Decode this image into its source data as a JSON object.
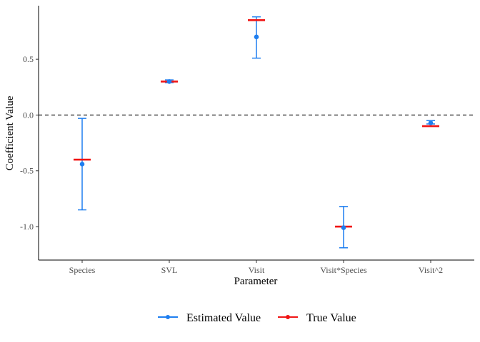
{
  "chart_data": {
    "type": "scatter",
    "xlabel": "Parameter",
    "ylabel": "Coefficient Value",
    "categories": [
      "Species",
      "SVL",
      "Visit",
      "Visit*Species",
      "Visit^2"
    ],
    "ylim": [
      -1.3,
      0.98
    ],
    "yticks": [
      -1.0,
      -0.5,
      0.0,
      0.5
    ],
    "ytick_labels": [
      "-1.0",
      "-0.5",
      "0.0",
      "0.5"
    ],
    "reference_line": {
      "y": 0,
      "style": "dashed"
    },
    "series": [
      {
        "name": "Estimated Value",
        "color": "#1E7EF0",
        "values": [
          -0.44,
          0.3,
          0.7,
          -1.01,
          -0.07
        ],
        "lower": [
          -0.85,
          0.29,
          0.51,
          -1.19,
          -0.08
        ],
        "upper": [
          -0.03,
          0.315,
          0.88,
          -0.82,
          -0.05
        ]
      },
      {
        "name": "True Value",
        "color": "#F01414",
        "values": [
          -0.4,
          0.3,
          0.85,
          -1.0,
          -0.1
        ]
      }
    ],
    "legend_position": "bottom",
    "grid": false
  }
}
